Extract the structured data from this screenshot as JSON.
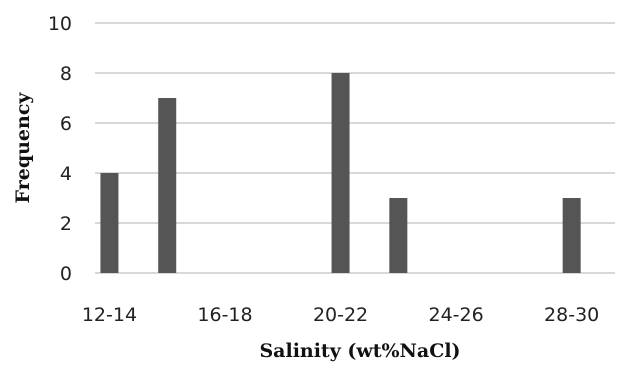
{
  "chart_data": {
    "type": "bar",
    "xlabel": "Salinity (wt%NaCl)",
    "ylabel": "Frequency",
    "ylim": [
      0,
      10
    ],
    "yticks": [
      "0",
      "2",
      "4",
      "6",
      "8",
      "10"
    ],
    "xtick_labels": [
      "12-14",
      "16-18",
      "20-22",
      "24-26",
      "28-30"
    ],
    "categories": [
      "12-13",
      "13-14",
      "14-15",
      "15-16",
      "16-17",
      "17-18",
      "18-19",
      "19-20",
      "20-21",
      "21-22",
      "22-23",
      "23-24",
      "24-25",
      "25-26",
      "26-27",
      "27-28",
      "28-29",
      "29-30"
    ],
    "values": [
      4,
      0,
      7,
      0,
      0,
      0,
      0,
      0,
      8,
      0,
      3,
      0,
      0,
      0,
      0,
      0,
      3,
      0
    ],
    "grid": true,
    "bar_color": "#555555",
    "grid_color": "#c0c0c0"
  }
}
